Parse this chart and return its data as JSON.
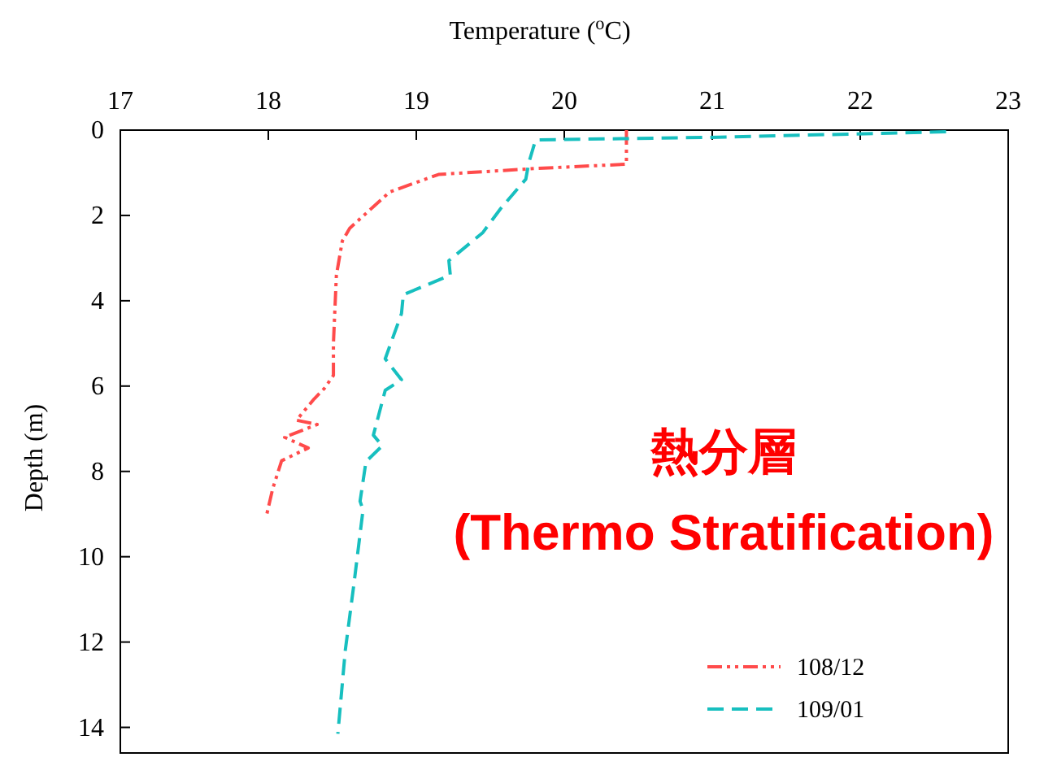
{
  "chart_data": {
    "type": "line",
    "xlabel": "Temperature ($^{o}$C)",
    "ylabel": "Depth (m)",
    "xlim": [
      17,
      23
    ],
    "xticks": [
      17,
      18,
      19,
      20,
      21,
      22,
      23
    ],
    "ylim": [
      14.6,
      0
    ],
    "yticks": [
      0,
      2,
      4,
      6,
      8,
      10,
      12,
      14
    ],
    "legend": "bottom right",
    "series": [
      {
        "name": "108/12",
        "color": "#ff4b4b",
        "line_style": "dotted",
        "x": [
          20.42,
          20.42,
          19.8,
          19.15,
          18.82,
          18.55,
          18.5,
          18.46,
          18.44,
          18.44,
          18.38,
          18.31,
          18.19,
          18.33,
          18.11,
          18.27,
          18.09,
          18.03,
          17.99
        ],
        "values": [
          0,
          0.8,
          0.9,
          1.04,
          1.45,
          2.3,
          2.6,
          3.4,
          5.0,
          5.75,
          6.05,
          6.3,
          6.8,
          6.9,
          7.2,
          7.45,
          7.75,
          8.4,
          9.0
        ]
      },
      {
        "name": "109/01",
        "color": "#17bfbf",
        "line_style": "dashed",
        "x": [
          22.58,
          20.98,
          19.81,
          19.8,
          19.76,
          19.74,
          19.57,
          19.45,
          19.22,
          19.23,
          18.91,
          18.91,
          18.9,
          18.79,
          18.9,
          18.79,
          18.71,
          18.77,
          18.66,
          18.62,
          18.64,
          18.58,
          18.52,
          18.47
        ],
        "values": [
          0.04,
          0.17,
          0.23,
          0.3,
          0.77,
          1.15,
          1.84,
          2.4,
          3.06,
          3.4,
          3.86,
          3.94,
          4.3,
          5.36,
          5.85,
          6.1,
          7.15,
          7.4,
          7.77,
          8.7,
          8.9,
          10.6,
          12.2,
          14.15
        ]
      }
    ],
    "annotations": [
      "熱分層",
      "(Thermo Stratification)"
    ]
  }
}
